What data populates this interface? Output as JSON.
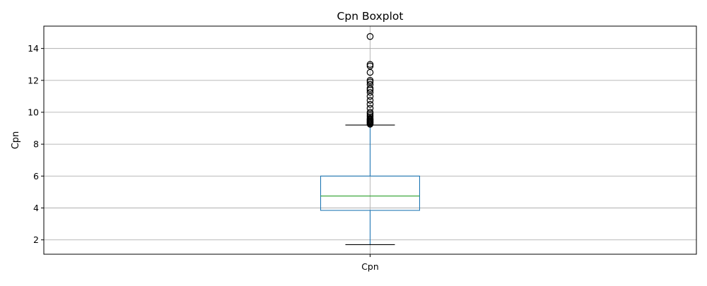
{
  "chart_data": {
    "type": "boxplot",
    "title": "Cpn Boxplot",
    "xlabel": "",
    "ylabel": "Cpn",
    "categories": [
      "Cpn"
    ],
    "ylim": [
      1.1,
      15.4
    ],
    "yticks": [
      2,
      4,
      6,
      8,
      10,
      12,
      14
    ],
    "grid": true,
    "boxes": [
      {
        "category": "Cpn",
        "whisker_low": 1.7,
        "q1": 3.85,
        "median": 4.75,
        "q3": 6.0,
        "whisker_high": 9.2,
        "outliers": [
          9.25,
          9.3,
          9.35,
          9.4,
          9.45,
          9.5,
          9.55,
          9.6,
          9.7,
          9.8,
          9.9,
          10.0,
          10.25,
          10.5,
          10.75,
          11.0,
          11.25,
          11.4,
          11.5,
          11.75,
          11.9,
          12.0,
          12.5,
          12.9,
          13.0,
          14.75
        ]
      }
    ],
    "colors": {
      "box": "#1f77b4",
      "median": "#2ca02c",
      "whisker_cap": "#000000",
      "outlier": "#000000",
      "grid": "#b0b0b0"
    }
  }
}
